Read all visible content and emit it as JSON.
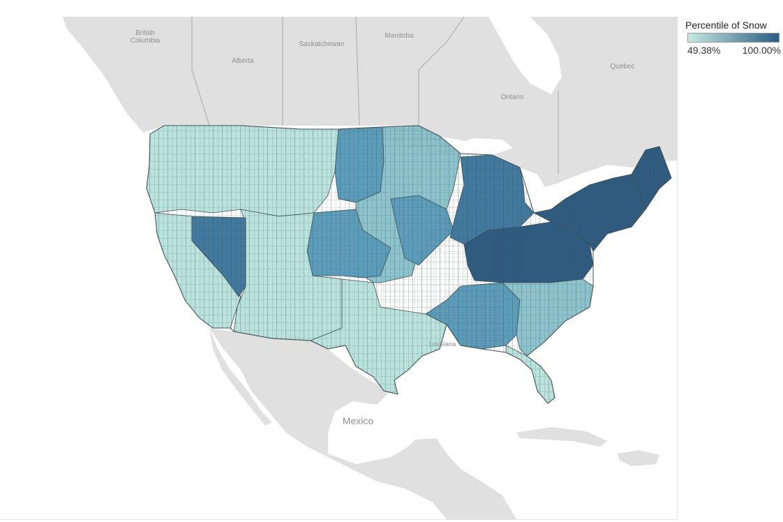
{
  "legend": {
    "title": "Percentile of Snow",
    "min_label": "49.38%",
    "max_label": "100.00%",
    "color_low": "#c6e9e2",
    "color_high": "#2c5b82"
  },
  "colors": {
    "land": "#e0e0e0",
    "water": "#ffffff",
    "border": "#a8a8a8",
    "county_line": "#3f4f52",
    "low": "#b9e3dc",
    "mid_low": "#8cc3cc",
    "mid": "#5b9dba",
    "mid_high": "#42799f",
    "high": "#2f5b80"
  },
  "map_labels": {
    "british_columbia_1": "British",
    "british_columbia_2": "Columbia",
    "alberta": "Alberta",
    "saskatchewan": "Saskatchewan",
    "manitoba": "Manitoba",
    "ontario": "Ontario",
    "quebec": "Quebec",
    "mexico": "Mexico",
    "louisiana": "Louisiana"
  },
  "regions": [
    {
      "id": "pacific-northwest",
      "level": "low"
    },
    {
      "id": "california",
      "level": "low"
    },
    {
      "id": "southwest",
      "level": "low"
    },
    {
      "id": "texas",
      "level": "low"
    },
    {
      "id": "nevada",
      "level": "mid_high"
    },
    {
      "id": "north-dakota",
      "level": "mid"
    },
    {
      "id": "central-plains",
      "level": "mid_low"
    },
    {
      "id": "colorado-kansas",
      "level": "mid"
    },
    {
      "id": "upper-midwest",
      "level": "mid"
    },
    {
      "id": "great-lakes",
      "level": "mid_high"
    },
    {
      "id": "ohio-valley",
      "level": "high"
    },
    {
      "id": "northeast",
      "level": "high"
    },
    {
      "id": "maine",
      "level": "high"
    },
    {
      "id": "deep-south",
      "level": "mid"
    },
    {
      "id": "georgia-carolinas",
      "level": "mid_low"
    },
    {
      "id": "florida",
      "level": "low"
    }
  ]
}
